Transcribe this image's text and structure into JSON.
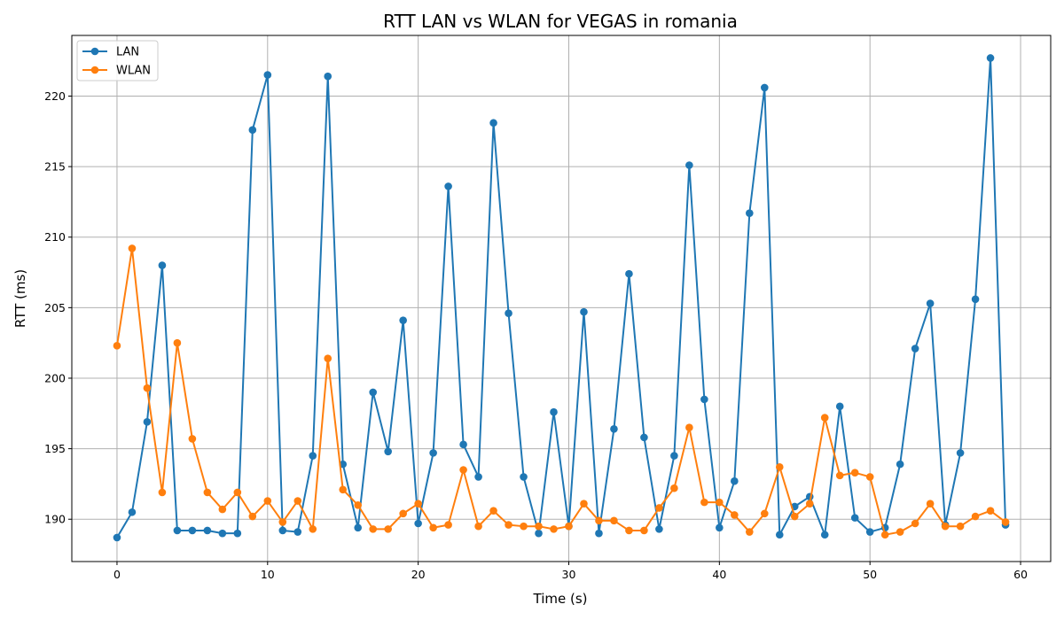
{
  "chart_data": {
    "type": "line",
    "title": "RTT LAN vs WLAN for VEGAS in romania",
    "xlabel": "Time (s)",
    "ylabel": "RTT (ms)",
    "xlim": [
      -3,
      62
    ],
    "ylim": [
      187.0,
      224.3
    ],
    "xticks": [
      0,
      10,
      20,
      30,
      40,
      50,
      60
    ],
    "yticks": [
      190,
      195,
      200,
      205,
      210,
      215,
      220
    ],
    "grid": true,
    "legend_position": "top-left",
    "x": [
      0,
      1,
      2,
      3,
      4,
      5,
      6,
      7,
      8,
      9,
      10,
      11,
      12,
      13,
      14,
      15,
      16,
      17,
      18,
      19,
      20,
      21,
      22,
      23,
      24,
      25,
      26,
      27,
      28,
      29,
      30,
      31,
      32,
      33,
      34,
      35,
      36,
      37,
      38,
      39,
      40,
      41,
      42,
      43,
      44,
      45,
      46,
      47,
      48,
      49,
      50,
      51,
      52,
      53,
      54,
      55,
      56,
      57,
      58,
      59
    ],
    "series": [
      {
        "name": "LAN",
        "color": "#1f77b4",
        "values": [
          188.7,
          190.5,
          196.9,
          208.0,
          189.2,
          189.2,
          189.2,
          189.0,
          189.0,
          217.6,
          221.5,
          189.2,
          189.1,
          194.5,
          221.4,
          193.9,
          189.4,
          199.0,
          194.8,
          204.1,
          189.7,
          194.7,
          213.6,
          195.3,
          193.0,
          218.1,
          204.6,
          193.0,
          189.0,
          197.6,
          189.5,
          204.7,
          189.0,
          196.4,
          207.4,
          195.8,
          189.3,
          194.5,
          215.1,
          198.5,
          189.4,
          192.7,
          211.7,
          220.6,
          188.9,
          190.9,
          191.6,
          188.9,
          198.0,
          190.1,
          189.1,
          189.4,
          193.9,
          202.1,
          205.3,
          189.6,
          194.7,
          205.6,
          222.7,
          189.6
        ]
      },
      {
        "name": "WLAN",
        "color": "#ff7f0e",
        "values": [
          202.3,
          209.2,
          199.3,
          191.9,
          202.5,
          195.7,
          191.9,
          190.7,
          191.9,
          190.2,
          191.3,
          189.8,
          191.3,
          189.3,
          201.4,
          192.1,
          191.0,
          189.3,
          189.3,
          190.4,
          191.1,
          189.4,
          189.6,
          193.5,
          189.5,
          190.6,
          189.6,
          189.5,
          189.5,
          189.3,
          189.5,
          191.1,
          189.9,
          189.9,
          189.2,
          189.2,
          190.8,
          192.2,
          196.5,
          191.2,
          191.2,
          190.3,
          189.1,
          190.4,
          193.7,
          190.2,
          191.1,
          197.2,
          193.1,
          193.3,
          193.0,
          188.9,
          189.1,
          189.7,
          191.1,
          189.5,
          189.5,
          190.2,
          190.6,
          189.8
        ]
      }
    ]
  }
}
